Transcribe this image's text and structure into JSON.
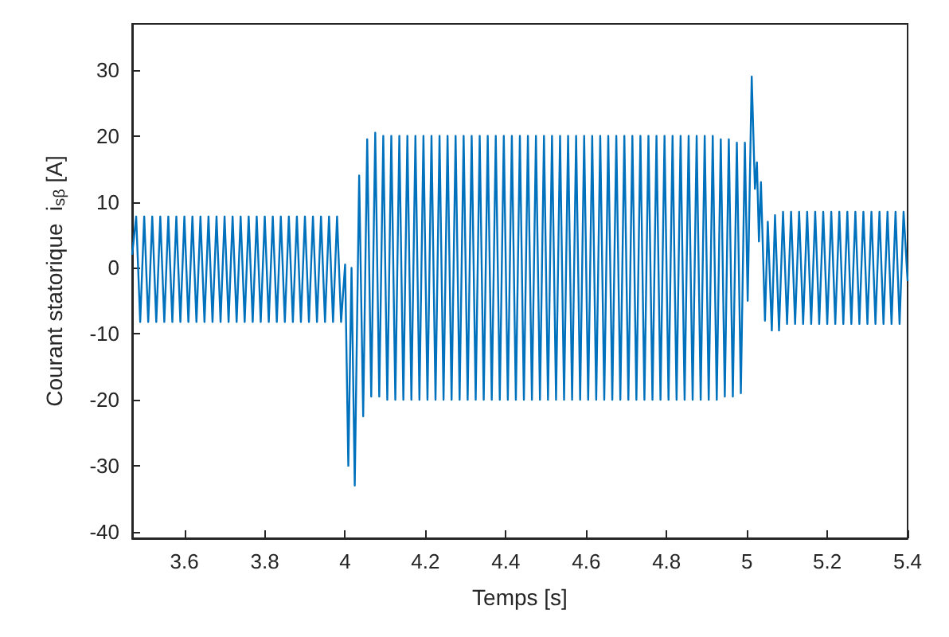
{
  "chart_data": {
    "type": "line",
    "xlabel": "Temps [s]",
    "ylabel": "Courant statorique  i$_{sβ}$ [A]",
    "xlim": [
      3.47,
      5.4
    ],
    "xticks": [
      3.6,
      3.8,
      4,
      4.2,
      4.4,
      4.6,
      4.8,
      5,
      5.2,
      5.4
    ],
    "ylim": [
      -41,
      37
    ],
    "yticks": [
      -40,
      -30,
      -20,
      -10,
      0,
      10,
      20,
      30
    ],
    "grid": false,
    "marker": "none",
    "line_style": "solid",
    "series": [
      {
        "color": "#0072bd",
        "x": [
          3.47,
          3.48,
          3.49,
          3.5,
          3.51,
          3.52,
          3.53,
          3.54,
          3.55,
          3.56,
          3.57,
          3.58,
          3.59,
          3.6,
          3.61,
          3.62,
          3.63,
          3.64,
          3.65,
          3.66,
          3.67,
          3.68,
          3.69,
          3.7,
          3.71,
          3.72,
          3.73,
          3.74,
          3.75,
          3.76,
          3.77,
          3.78,
          3.79,
          3.8,
          3.81,
          3.82,
          3.83,
          3.84,
          3.85,
          3.86,
          3.87,
          3.88,
          3.89,
          3.9,
          3.91,
          3.92,
          3.93,
          3.94,
          3.95,
          3.96,
          3.97,
          3.98,
          3.99,
          4.0,
          4.008,
          4.016,
          4.024,
          4.035,
          4.045,
          4.055,
          4.065,
          4.075,
          4.085,
          4.095,
          4.105,
          4.115,
          4.125,
          4.135,
          4.145,
          4.155,
          4.165,
          4.175,
          4.185,
          4.195,
          4.205,
          4.215,
          4.225,
          4.235,
          4.245,
          4.255,
          4.265,
          4.275,
          4.285,
          4.295,
          4.305,
          4.315,
          4.325,
          4.335,
          4.345,
          4.355,
          4.365,
          4.375,
          4.385,
          4.395,
          4.405,
          4.415,
          4.425,
          4.435,
          4.445,
          4.455,
          4.465,
          4.475,
          4.485,
          4.495,
          4.505,
          4.515,
          4.525,
          4.535,
          4.545,
          4.555,
          4.565,
          4.575,
          4.585,
          4.595,
          4.605,
          4.615,
          4.625,
          4.635,
          4.645,
          4.655,
          4.665,
          4.675,
          4.685,
          4.695,
          4.705,
          4.715,
          4.725,
          4.735,
          4.745,
          4.755,
          4.765,
          4.775,
          4.785,
          4.795,
          4.805,
          4.815,
          4.825,
          4.835,
          4.845,
          4.855,
          4.865,
          4.875,
          4.885,
          4.895,
          4.905,
          4.915,
          4.925,
          4.935,
          4.945,
          4.955,
          4.965,
          4.975,
          4.985,
          4.995,
          5.002,
          5.012,
          5.02,
          5.025,
          5.03,
          5.035,
          5.045,
          5.052,
          5.062,
          5.07,
          5.08,
          5.09,
          5.1,
          5.11,
          5.12,
          5.13,
          5.14,
          5.15,
          5.16,
          5.17,
          5.18,
          5.19,
          5.2,
          5.21,
          5.22,
          5.23,
          5.24,
          5.25,
          5.26,
          5.27,
          5.28,
          5.29,
          5.3,
          5.31,
          5.32,
          5.33,
          5.34,
          5.35,
          5.36,
          5.37,
          5.38,
          5.39,
          5.4
        ],
        "values": [
          2,
          7.8,
          -8.2,
          7.8,
          -8.2,
          7.8,
          -8.2,
          7.8,
          -8.2,
          7.8,
          -8.2,
          7.8,
          -8.2,
          7.8,
          -8.2,
          7.8,
          -8.2,
          7.8,
          -8.2,
          7.8,
          -8.2,
          7.8,
          -8.2,
          7.8,
          -8.2,
          7.8,
          -8.2,
          7.8,
          -8.2,
          7.8,
          -8.2,
          7.8,
          -8.2,
          7.8,
          -8.2,
          7.8,
          -8.2,
          7.8,
          -8.2,
          7.8,
          -8.2,
          7.8,
          -8.2,
          7.8,
          -8.2,
          7.8,
          -8.2,
          7.8,
          -8.2,
          7.8,
          -8.2,
          7.8,
          -8.2,
          0.5,
          -30,
          0,
          -33,
          14,
          -22.5,
          19.5,
          -19.5,
          20.5,
          -19.5,
          20,
          -20,
          20,
          -20,
          20,
          -20,
          20,
          -20,
          20,
          -20,
          20,
          -20,
          20,
          -20,
          20,
          -20,
          20,
          -20,
          20,
          -20,
          20,
          -20,
          20,
          -20,
          20,
          -20,
          20,
          -20,
          20,
          -20,
          20,
          -20,
          20,
          -20,
          20,
          -20,
          20,
          -20,
          20,
          -20,
          20,
          -20,
          20,
          -20,
          20,
          -20,
          20,
          -20,
          20,
          -20,
          20,
          -20,
          20,
          -20,
          20,
          -20,
          20,
          -20,
          20,
          -20,
          20,
          -20,
          20,
          -20,
          20,
          -20,
          20,
          -20,
          20,
          -20,
          20,
          -20,
          20,
          -20,
          20,
          -20,
          20,
          -20,
          20,
          -20,
          20,
          -20,
          20,
          -20,
          19.5,
          -19.5,
          19.5,
          -19.5,
          19,
          -19,
          19,
          -5,
          29,
          12,
          16,
          4,
          13,
          -8,
          7,
          -9.5,
          8,
          -9.5,
          8.5,
          -8.5,
          8.5,
          -8.5,
          8.5,
          -8.5,
          8.5,
          -8.5,
          8.5,
          -8.5,
          8.5,
          -8.5,
          8.5,
          -8.5,
          8.5,
          -8.5,
          8.5,
          -8.5,
          8.5,
          -8.5,
          8.5,
          -8.5,
          8.5,
          -8.5,
          8.5,
          -8.5,
          8.5,
          -8.5,
          8.5,
          -8.5,
          8.5,
          -2
        ]
      }
    ]
  }
}
